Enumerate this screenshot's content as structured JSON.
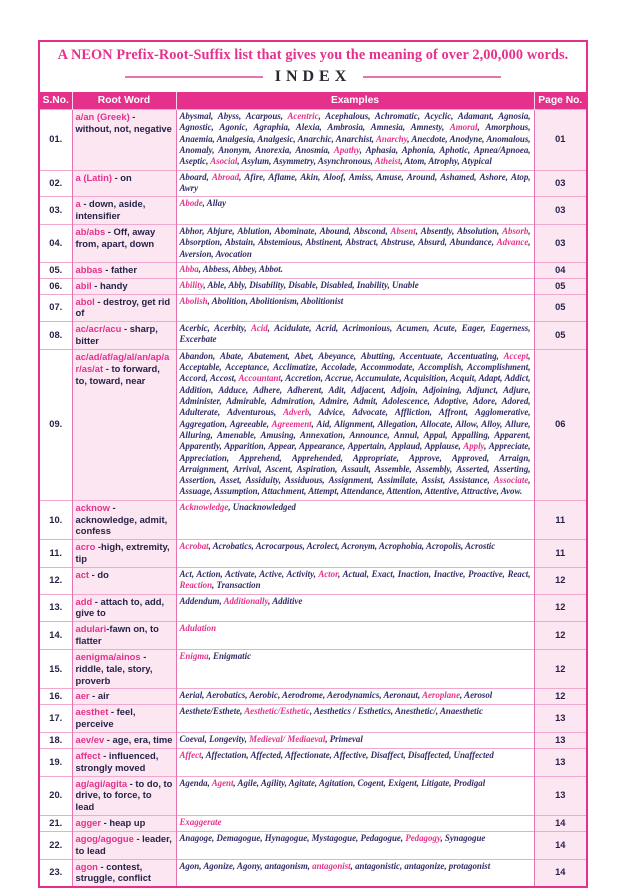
{
  "page": {
    "title": "A NEON Prefix-Root-Suffix list that gives you the meaning of over 2,00,000 words.",
    "index_heading": "INDEX"
  },
  "colors": {
    "accent": "#e5318c",
    "row_tint": "#fce6f2",
    "ink": "#322c68",
    "dark": "#272348",
    "line_soft": "#f1a8cf",
    "line_mid": "#e873b1",
    "heading_ink": "#2a2730"
  },
  "table": {
    "headers": [
      "S.No.",
      "Root Word",
      "Examples",
      "Page No."
    ],
    "rows": [
      {
        "sno": "01.",
        "root_pink": "a/an (Greek)",
        "root_rest": " - without, not, negative",
        "examples": "Abysmal, Abyss, Acarpous, Acentric, Acephalous, Achromatic, Acyclic, Adamant, Agnosia, Agnostic, Agonic, Agraphia, Alexia, Ambrosia, Amnesia, Amnesty, Amoral, Amorphous, Anaemia, Analgesia, Analgesic, Anarchic, Anarchist, Anarchy, Anecdote, Anodyne, Anomalous, Anomaly, Anonym, Anorexia, Anosmia, Apathy, Aphasia, Aphonia, Aphotic, Apnea/Apnoea, Aseptic, Asocial, Asylum, Asymmetry, Asynchronous, Atheist, Atom, Atrophy, Atypical",
        "highlights": [
          "Acentric",
          "Amoral",
          "Anarchy",
          "Apathy",
          "Asocial",
          "Atheist"
        ],
        "page": "01"
      },
      {
        "sno": "02.",
        "root_pink": "a (Latin)",
        "root_rest": " - on",
        "examples": "Aboard, Abroad, Afire, Aflame, Akin, Aloof, Amiss, Amuse, Around, Ashamed, Ashore, Atop, Awry",
        "highlights": [
          "Abroad"
        ],
        "page": "03"
      },
      {
        "sno": "03.",
        "root_pink": "a",
        "root_rest": " - down, aside, intensifier",
        "examples": "Abode, Allay",
        "highlights": [
          "Abode"
        ],
        "page": "03"
      },
      {
        "sno": "04.",
        "root_pink": "ab/abs",
        "root_rest": " - Off, away from, apart, down",
        "examples": "Abhor, Abjure, Ablution, Abominate, Abound, Abscond, Absent, Absently, Absolution, Absorb, Absorption, Abstain, Abstemious, Abstinent, Abstract, Abstruse, Absurd, Abundance, Advance, Aversion, Avocation",
        "highlights": [
          "Absent",
          "Absorb",
          "Advance"
        ],
        "page": "03"
      },
      {
        "sno": "05.",
        "root_pink": "abbas",
        "root_rest": " - father",
        "examples": "Abba, Abbess, Abbey, Abbot.",
        "highlights": [
          "Abba"
        ],
        "page": "04"
      },
      {
        "sno": "06.",
        "root_pink": "abil",
        "root_rest": " - handy",
        "examples": "Ability, Able, Ably, Disability, Disable, Disabled, Inability, Unable",
        "highlights": [
          "Ability"
        ],
        "page": "05"
      },
      {
        "sno": "07.",
        "root_pink": "abol",
        "root_rest": " - destroy, get rid of",
        "examples": "Abolish, Abolition, Abolitionism, Abolitionist",
        "highlights": [
          "Abolish"
        ],
        "page": "05"
      },
      {
        "sno": "08.",
        "root_pink": "ac/acr/acu",
        "root_rest": " - sharp, bitter",
        "examples": "Acerbic, Acerbity, Acid, Acidulate, Acrid, Acrimonious, Acumen, Acute, Eager, Eagerness, Excerbate",
        "highlights": [
          "Acid"
        ],
        "page": "05"
      },
      {
        "sno": "09.",
        "root_pink": "ac/ad/af/ag/al/an/ap/ar/as/at",
        "root_rest": " - to forward, to, toward, near",
        "examples": "Abandon, Abate, Abatement, Abet, Abeyance, Abutting, Accentuate, Accentuating, Accept, Acceptable, Acceptance, Acclimatize, Accolade, Accommodate, Accomplish, Accomplishment, Accord, Accost, Accountant, Accretion, Accrue, Accumulate, Acquisition, Acquit, Adapt, Addict, Addition, Adduce, Adhere, Adherent, Adit, Adjacent, Adjoin, Adjoining, Adjunct, Adjure, Administer, Admirable, Admiration, Admire, Admit, Adolescence, Adoptive, Adore, Adored, Adulterate, Adventurous, Adverb, Advice, Advocate, Affliction, Affront, Agglomerative, Aggregation, Agreeable, Agreement, Aid, Alignment, Allegation, Allocate, Allow, Alloy, Allure, Alluring, Amenable, Amusing, Annexation, Announce, Annul, Appal, Appalling, Apparent, Apparently, Apparition, Appear, Appearance, Appertain, Applaud, Applause, Apply, Appreciate, Appreciation, Apprehend, Apprehended, Appropriate, Approve, Approved, Arraign, Arraignment, Arrival, Ascent, Aspiration, Assault, Assemble, Assembly, Asserted, Asserting, Assertion, Asset, Assiduity, Assiduous, Assignment, Assimilate, Assist, Assistance, Associate, Assuage, Assumption, Attachment, Attempt, Attendance, Attention, Attentive, Attractive, Avow.",
        "highlights": [
          "Accept",
          "Accountant",
          "Adverb",
          "Agreement",
          "Apply",
          "Associate"
        ],
        "page": "06"
      },
      {
        "sno": "10.",
        "root_pink": "acknow",
        "root_rest": " - acknowledge, admit, confess",
        "examples": "Acknowledge, Unacknowledged",
        "highlights": [
          "Acknowledge"
        ],
        "page": "11"
      },
      {
        "sno": "11.",
        "root_pink": "acro",
        "root_rest": " -high, extremity, tip",
        "examples": "Acrobat, Acrobatics, Acrocarpous, Acrolect, Acronym, Acrophobia, Acropolis, Acrostic",
        "highlights": [
          "Acrobat"
        ],
        "page": "11"
      },
      {
        "sno": "12.",
        "root_pink": "act",
        "root_rest": " - do",
        "examples": "Act, Action, Activate, Active, Activity, Actor, Actual, Exact, Inaction, Inactive, Proactive, React, Reaction, Transaction",
        "highlights": [
          "Actor",
          "Reaction"
        ],
        "page": "12"
      },
      {
        "sno": "13.",
        "root_pink": "add",
        "root_rest": " - attach to, add, give to",
        "examples": "Addendum, Additionally, Additive",
        "highlights": [
          "Additionally"
        ],
        "page": "12"
      },
      {
        "sno": "14.",
        "root_pink": "adulari",
        "root_rest": "-fawn on, to flatter",
        "examples": "Adulation",
        "highlights": [
          "Adulation"
        ],
        "page": "12"
      },
      {
        "sno": "15.",
        "root_pink": "aenigma/ainos",
        "root_rest": " - riddle, tale, story, proverb",
        "examples": "Enigma, Enigmatic",
        "highlights": [
          "Enigma"
        ],
        "page": "12"
      },
      {
        "sno": "16.",
        "root_pink": "aer",
        "root_rest": " - air",
        "examples": "Aerial, Aerobatics, Aerobic, Aerodrome, Aerodynamics, Aeronaut, Aeroplane, Aerosol",
        "highlights": [
          "Aeroplane"
        ],
        "page": "12"
      },
      {
        "sno": "17.",
        "root_pink": "aesthet",
        "root_rest": " - feel, perceive",
        "examples": "Aesthete/Esthete, Aesthetic/Esthetic, Aesthetics / Esthetics, Anesthetic/, Anaesthetic",
        "highlights": [
          "Aesthetic/Esthetic"
        ],
        "page": "13"
      },
      {
        "sno": "18.",
        "root_pink": "aev/ev",
        "root_rest": " - age, era, time",
        "examples": "Coeval, Longevity, Medieval/ Mediaeval, Primeval",
        "highlights": [
          "Medieval/ Mediaeval"
        ],
        "page": "13"
      },
      {
        "sno": "19.",
        "root_pink": "affect",
        "root_rest": " - influenced, strongly moved",
        "examples": "Affect, Affectation, Affected, Affectionate, Affective, Disaffect, Disaffected, Unaffected",
        "highlights": [
          "Affect"
        ],
        "page": "13"
      },
      {
        "sno": "20.",
        "root_pink": "ag/agi/agita",
        "root_rest": " - to do, to drive, to force, to lead",
        "examples": "Agenda, Agent, Agile, Agility, Agitate, Agitation, Cogent, Exigent, Litigate, Prodigal",
        "highlights": [
          "Agent"
        ],
        "page": "13"
      },
      {
        "sno": "21.",
        "root_pink": "agger",
        "root_rest": " - heap up",
        "examples": "Exaggerate",
        "highlights": [
          "Exaggerate"
        ],
        "page": "14"
      },
      {
        "sno": "22.",
        "root_pink": "agog/agogue",
        "root_rest": " - leader, to lead",
        "examples": "Anagoge, Demagogue, Hynagogue, Mystagogue, Pedagogue, Pedagogy, Synagogue",
        "highlights": [
          "Pedagogy"
        ],
        "page": "14"
      },
      {
        "sno": "23.",
        "root_pink": "agon",
        "root_rest": " - contest, struggle, conflict",
        "examples": "Agon, Agonize, Agony, antagonism, antagonist, antagonistic, antagonize, protagonist",
        "highlights": [
          "antagonist"
        ],
        "page": "14"
      }
    ]
  }
}
